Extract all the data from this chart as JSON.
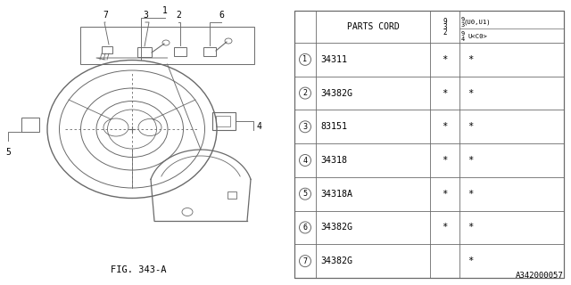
{
  "fig_label": "FIG. 343-A",
  "ref_code": "A342000057",
  "bg_color": "#ffffff",
  "line_color": "#6a6a6a",
  "table": {
    "title": "PARTS CORD",
    "rows": [
      {
        "num": "1",
        "part": "34311",
        "col1": "*",
        "col2": "*"
      },
      {
        "num": "2",
        "part": "34382G",
        "col1": "*",
        "col2": "*"
      },
      {
        "num": "3",
        "part": "83151",
        "col1": "*",
        "col2": "*"
      },
      {
        "num": "4",
        "part": "34318",
        "col1": "*",
        "col2": "*"
      },
      {
        "num": "5",
        "part": "34318A",
        "col1": "*",
        "col2": "*"
      },
      {
        "num": "6",
        "part": "34382G",
        "col1": "*",
        "col2": "*"
      },
      {
        "num": "7",
        "part": "34382G",
        "col1": "",
        "col2": "*"
      }
    ]
  }
}
